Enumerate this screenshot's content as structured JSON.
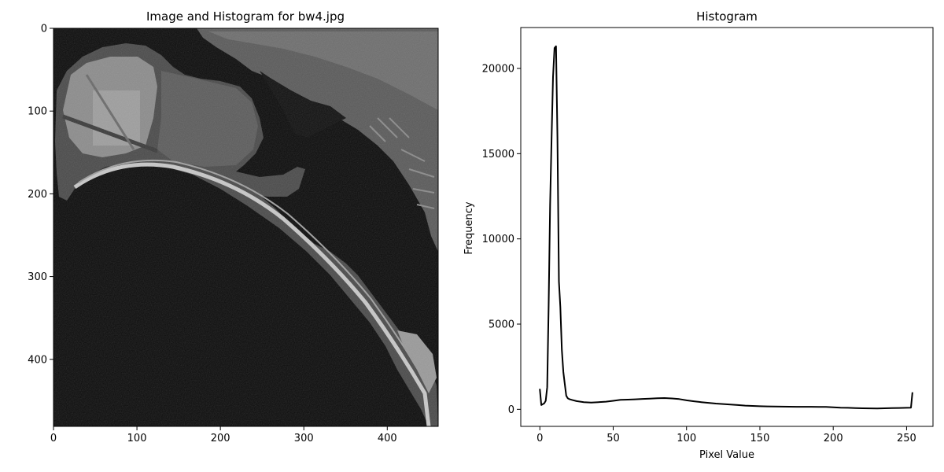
{
  "chart_data": [
    {
      "type": "image",
      "title": "Image and Histogram for bw4.jpg",
      "xlim": [
        0,
        461
      ],
      "ylim": [
        481,
        0
      ],
      "xticks": [
        0,
        100,
        200,
        300,
        400
      ],
      "yticks": [
        0,
        100,
        200,
        300,
        400
      ],
      "colormap": "gray"
    },
    {
      "type": "line",
      "title": "Histogram",
      "xlabel": "Pixel Value",
      "ylabel": "Frequency",
      "xlim": [
        -13,
        268
      ],
      "ylim": [
        -1000,
        22400
      ],
      "xticks": [
        0,
        50,
        100,
        150,
        200,
        250
      ],
      "yticks": [
        0,
        5000,
        10000,
        15000,
        20000
      ],
      "line_color": "#000000",
      "series": [
        {
          "x": [
            0,
            1,
            2,
            3,
            4,
            5,
            6,
            7,
            8,
            9,
            10,
            11,
            12,
            13,
            14,
            15,
            16,
            17,
            18,
            19,
            20,
            22,
            25,
            30,
            35,
            40,
            45,
            50,
            55,
            60,
            65,
            70,
            75,
            80,
            85,
            90,
            95,
            100,
            105,
            110,
            115,
            120,
            125,
            130,
            135,
            140,
            145,
            150,
            155,
            160,
            165,
            170,
            175,
            180,
            185,
            190,
            195,
            200,
            205,
            210,
            215,
            220,
            225,
            230,
            235,
            240,
            245,
            250,
            253,
            254
          ],
          "y": [
            1200,
            250,
            300,
            350,
            500,
            1300,
            6000,
            12000,
            16000,
            19500,
            21200,
            21300,
            16000,
            7500,
            6000,
            3500,
            2200,
            1500,
            800,
            650,
            600,
            550,
            480,
            420,
            400,
            420,
            450,
            500,
            560,
            570,
            590,
            610,
            630,
            650,
            660,
            640,
            600,
            530,
            470,
            420,
            380,
            340,
            310,
            280,
            250,
            220,
            200,
            180,
            170,
            165,
            160,
            155,
            150,
            150,
            150,
            145,
            140,
            120,
            100,
            90,
            70,
            60,
            55,
            50,
            60,
            70,
            80,
            90,
            100,
            1000
          ]
        }
      ]
    }
  ]
}
